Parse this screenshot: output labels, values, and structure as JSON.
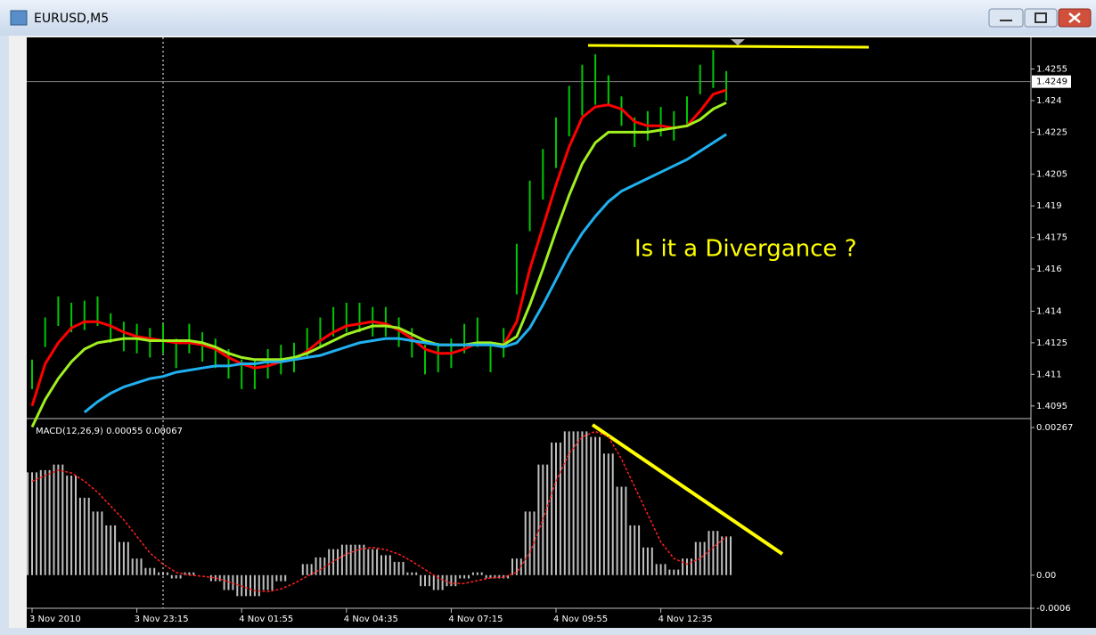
{
  "window": {
    "title": "EURUSD,M5"
  },
  "chart_data": [
    {
      "type": "ohlc",
      "annotation": "Is it a Divergance ?",
      "categories": [
        "3 Nov 2010",
        null,
        null,
        null,
        null,
        null,
        null,
        null,
        "3 Nov 23:15",
        null,
        null,
        null,
        null,
        null,
        null,
        null,
        "4 Nov 01:55",
        null,
        null,
        null,
        null,
        null,
        null,
        null,
        "4 Nov 04:35",
        null,
        null,
        null,
        null,
        null,
        null,
        null,
        "4 Nov 07:15",
        null,
        null,
        null,
        null,
        null,
        null,
        null,
        "4 Nov 09:55",
        null,
        null,
        null,
        null,
        null,
        null,
        null,
        "4 Nov 12:35",
        null,
        null,
        null,
        null,
        null
      ],
      "color": "#00c800",
      "high": [
        1.4117,
        1.4137,
        1.4147,
        1.4144,
        1.4145,
        1.4147,
        1.4139,
        1.4135,
        1.4134,
        1.4132,
        1.4134,
        1.4127,
        1.4134,
        1.413,
        1.4127,
        1.4122,
        1.4117,
        1.4117,
        1.4122,
        1.4124,
        1.4125,
        1.4132,
        1.4137,
        1.4142,
        1.4144,
        1.4144,
        1.4142,
        1.4142,
        1.4137,
        1.4132,
        1.4124,
        1.4125,
        1.4127,
        1.4134,
        1.4137,
        1.4125,
        1.4132,
        1.4172,
        1.4202,
        1.4217,
        1.4232,
        1.4247,
        1.4257,
        1.4262,
        1.4252,
        1.4242,
        1.4232,
        1.4235,
        1.4237,
        1.4235,
        1.4242,
        1.4257,
        1.4264,
        1.4254
      ],
      "low": [
        1.4103,
        1.4123,
        1.4133,
        1.413,
        1.4131,
        1.4133,
        1.4125,
        1.4121,
        1.412,
        1.4118,
        1.412,
        1.4113,
        1.412,
        1.4116,
        1.4113,
        1.4108,
        1.4103,
        1.4103,
        1.4108,
        1.411,
        1.4111,
        1.4118,
        1.4123,
        1.4128,
        1.413,
        1.413,
        1.4128,
        1.4128,
        1.4123,
        1.4118,
        1.411,
        1.4111,
        1.4113,
        1.412,
        1.4123,
        1.4111,
        1.4118,
        1.4148,
        1.4178,
        1.4193,
        1.4208,
        1.4223,
        1.4233,
        1.4238,
        1.4238,
        1.4228,
        1.4218,
        1.4221,
        1.4223,
        1.4221,
        1.4228,
        1.4243,
        1.4246,
        1.424
      ],
      "series": [
        {
          "color": "#ff0000",
          "values": [
            1.4095,
            1.4115,
            1.4125,
            1.4132,
            1.4135,
            1.4135,
            1.4133,
            1.413,
            1.4128,
            1.4127,
            1.4126,
            1.4125,
            1.4125,
            1.4124,
            1.4122,
            1.4118,
            1.4115,
            1.4113,
            1.4114,
            1.4116,
            1.4117,
            1.4121,
            1.4126,
            1.413,
            1.4133,
            1.4134,
            1.4135,
            1.4134,
            1.4131,
            1.4127,
            1.4122,
            1.412,
            1.412,
            1.4122,
            1.4125,
            1.4124,
            1.4124,
            1.4135,
            1.416,
            1.418,
            1.42,
            1.4218,
            1.4232,
            1.4237,
            1.4238,
            1.4236,
            1.423,
            1.4228,
            1.4228,
            1.4227,
            1.4228,
            1.4235,
            1.4243,
            1.4245
          ]
        },
        {
          "color": "#a0f020",
          "values": [
            1.4085,
            1.4098,
            1.4108,
            1.4116,
            1.4122,
            1.4125,
            1.4126,
            1.4127,
            1.4127,
            1.4126,
            1.4126,
            1.4126,
            1.4126,
            1.4125,
            1.4123,
            1.412,
            1.4118,
            1.4117,
            1.4117,
            1.4117,
            1.4118,
            1.412,
            1.4123,
            1.4126,
            1.4129,
            1.4131,
            1.4133,
            1.4133,
            1.4132,
            1.4129,
            1.4126,
            1.4124,
            1.4124,
            1.4124,
            1.4125,
            1.4125,
            1.4124,
            1.4128,
            1.4143,
            1.416,
            1.4178,
            1.4195,
            1.421,
            1.422,
            1.4225,
            1.4225,
            1.4225,
            1.4225,
            1.4226,
            1.4227,
            1.4228,
            1.4231,
            1.4236,
            1.4239
          ]
        },
        {
          "color": "#20b0f0",
          "values": [
            null,
            null,
            null,
            null,
            1.4092,
            1.4097,
            1.4101,
            1.4104,
            1.4106,
            1.4108,
            1.4109,
            1.4111,
            1.4112,
            1.4113,
            1.4114,
            1.4114,
            1.4115,
            1.4115,
            1.4116,
            1.4116,
            1.4117,
            1.4118,
            1.4119,
            1.4121,
            1.4123,
            1.4125,
            1.4126,
            1.4127,
            1.4127,
            1.4126,
            1.4125,
            1.4124,
            1.4124,
            1.4124,
            1.4124,
            1.4124,
            1.4123,
            1.4125,
            1.4132,
            1.4143,
            1.4155,
            1.4167,
            1.4177,
            1.4185,
            1.4192,
            1.4197,
            1.42,
            1.4203,
            1.4206,
            1.4209,
            1.4212,
            1.4216,
            1.422,
            1.4224
          ]
        }
      ],
      "current_price": 1.4249,
      "ylim": [
        1.4089,
        1.427
      ],
      "yticks": [
        1.4255,
        1.424,
        1.4225,
        1.4205,
        1.419,
        1.4175,
        1.416,
        1.414,
        1.4125,
        1.411,
        1.4095
      ]
    },
    {
      "type": "macd",
      "label": "MACD(12,26,9) 0.00055 0.00067",
      "series": [
        {
          "style": "histogram",
          "color": "#c0c0c0",
          "values": [
            0.00186,
            0.0019,
            0.002,
            0.0018,
            0.0014,
            0.00115,
            0.0009,
            0.0006,
            0.0003,
            0.00013,
            5e-05,
            -6e-05,
            5e-05,
            0,
            -0.00011,
            -0.00027,
            -0.00038,
            -0.00038,
            -0.00027,
            -0.00011,
            0,
            0.0002,
            0.00032,
            0.00047,
            0.00055,
            0.00055,
            0.00047,
            0.00036,
            0.00024,
            5e-05,
            -0.0002,
            -0.00027,
            -0.0002,
            -6e-05,
            5e-05,
            -6e-05,
            -6e-05,
            0.0003,
            0.00115,
            0.002,
            0.0024,
            0.0026,
            0.0026,
            0.0025,
            0.0022,
            0.0016,
            0.0009,
            0.0005,
            0.0002,
            0.0001,
            0.0003,
            0.0006,
            0.0008,
            0.0007
          ]
        },
        {
          "style": "dotted",
          "color": "#ff2020",
          "values": [
            0.0017,
            0.0018,
            0.0019,
            0.00185,
            0.0017,
            0.0015,
            0.00125,
            0.001,
            0.0007,
            0.0004,
            0.0002,
            5e-05,
            0,
            -2e-05,
            -5e-05,
            -0.00012,
            -0.0002,
            -0.00028,
            -0.0003,
            -0.00025,
            -0.00015,
            -2e-05,
            0.0001,
            0.00025,
            0.00038,
            0.00047,
            0.0005,
            0.00046,
            0.00038,
            0.00025,
            0.0001,
            -5e-05,
            -0.00015,
            -0.00015,
            -0.0001,
            -5e-05,
            -4e-05,
            5e-05,
            0.0004,
            0.001,
            0.0017,
            0.0022,
            0.0025,
            0.0026,
            0.0025,
            0.0021,
            0.0016,
            0.0011,
            0.0006,
            0.0003,
            0.0002,
            0.0003,
            0.0005,
            0.0007
          ]
        }
      ],
      "ylim": [
        -0.0006,
        0.0028
      ],
      "yticks": [
        0.00267,
        {
          "value": 0,
          "label": "0.00"
        },
        -0.0006
      ]
    }
  ]
}
